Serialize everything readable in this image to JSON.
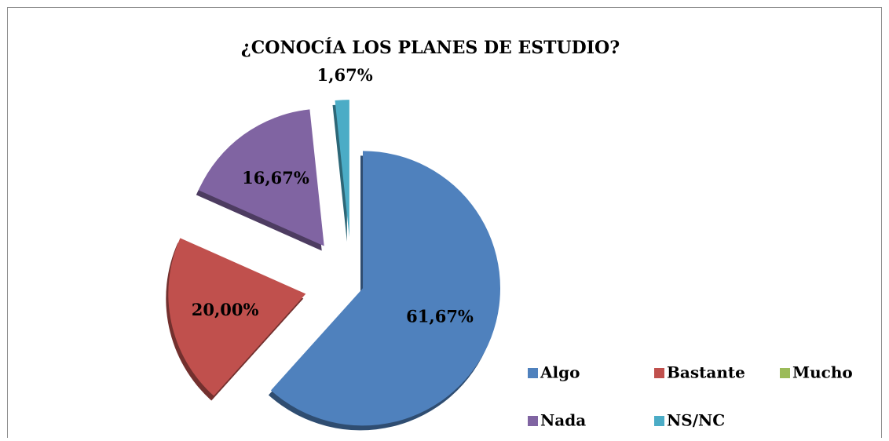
{
  "chart_data": {
    "type": "pie",
    "title": "¿CONOCÍA LOS PLANES DE ESTUDIO?",
    "categories": [
      "Algo",
      "Bastante",
      "Mucho",
      "Nada",
      "NS/NC"
    ],
    "values": [
      61.67,
      20.0,
      0,
      16.67,
      1.67
    ],
    "value_labels": [
      "61,67%",
      "20,00%",
      null,
      "16,67%",
      "1,67%"
    ],
    "colors": [
      "#4f81bd",
      "#c0504d",
      "#9bbb59",
      "#8064a2",
      "#4bacc6"
    ],
    "legend": "bottom-right"
  }
}
